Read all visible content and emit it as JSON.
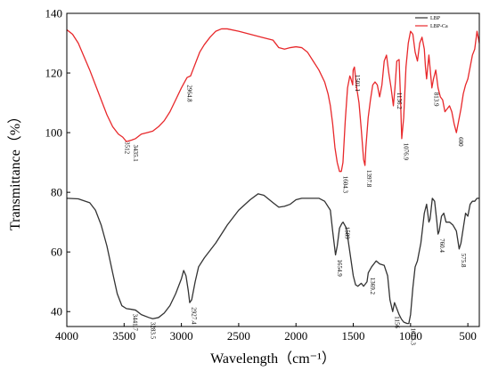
{
  "chart_data": {
    "type": "line",
    "xlabel": "Wavelength（cm⁻¹）",
    "ylabel": "Transmittance（%）",
    "xlim": [
      4000,
      400
    ],
    "ylim": [
      35,
      140
    ],
    "x_ticks": [
      4000,
      3500,
      3000,
      2500,
      2000,
      1500,
      1000,
      500
    ],
    "y_ticks": [
      40,
      60,
      80,
      100,
      120,
      140
    ],
    "legend_position": "top-right",
    "series": [
      {
        "name": "LBP",
        "color": "#333333",
        "points": [
          [
            4000,
            78
          ],
          [
            3900,
            77.8
          ],
          [
            3800,
            76.5
          ],
          [
            3750,
            74
          ],
          [
            3700,
            69
          ],
          [
            3650,
            62
          ],
          [
            3600,
            53
          ],
          [
            3560,
            46
          ],
          [
            3520,
            42
          ],
          [
            3480,
            41
          ],
          [
            3441.7,
            40.8
          ],
          [
            3400,
            40.5
          ],
          [
            3350,
            39
          ],
          [
            3283.5,
            38
          ],
          [
            3250,
            37.6
          ],
          [
            3200,
            38
          ],
          [
            3150,
            39.5
          ],
          [
            3100,
            42
          ],
          [
            3050,
            46
          ],
          [
            3000,
            51
          ],
          [
            2980,
            53.8
          ],
          [
            2960,
            52
          ],
          [
            2940,
            47
          ],
          [
            2927.4,
            43
          ],
          [
            2910,
            44
          ],
          [
            2880,
            50
          ],
          [
            2850,
            55
          ],
          [
            2800,
            58
          ],
          [
            2700,
            63
          ],
          [
            2600,
            69
          ],
          [
            2500,
            74
          ],
          [
            2400,
            77.5
          ],
          [
            2330,
            79.5
          ],
          [
            2280,
            79
          ],
          [
            2200,
            76.5
          ],
          [
            2150,
            75
          ],
          [
            2100,
            75.3
          ],
          [
            2050,
            76
          ],
          [
            2000,
            77.5
          ],
          [
            1950,
            78
          ],
          [
            1900,
            78
          ],
          [
            1850,
            78
          ],
          [
            1800,
            78
          ],
          [
            1750,
            77
          ],
          [
            1700,
            74
          ],
          [
            1680,
            67
          ],
          [
            1654.9,
            59
          ],
          [
            1640,
            62
          ],
          [
            1620,
            68
          ],
          [
            1600,
            69.5
          ],
          [
            1589,
            70
          ],
          [
            1560,
            68
          ],
          [
            1530,
            60
          ],
          [
            1500,
            52
          ],
          [
            1480,
            49
          ],
          [
            1460,
            48.5
          ],
          [
            1430,
            49.5
          ],
          [
            1410,
            48.5
          ],
          [
            1380,
            50
          ],
          [
            1369.2,
            53
          ],
          [
            1340,
            55
          ],
          [
            1300,
            57
          ],
          [
            1270,
            56
          ],
          [
            1230,
            55.5
          ],
          [
            1200,
            52
          ],
          [
            1180,
            44
          ],
          [
            1156,
            40
          ],
          [
            1140,
            43
          ],
          [
            1120,
            41
          ],
          [
            1100,
            39
          ],
          [
            1080,
            37.5
          ],
          [
            1060,
            36.5
          ],
          [
            1030,
            36
          ],
          [
            1015.3,
            36
          ],
          [
            1000,
            39
          ],
          [
            980,
            48
          ],
          [
            960,
            55
          ],
          [
            940,
            57
          ],
          [
            910,
            63
          ],
          [
            880,
            73
          ],
          [
            860,
            76
          ],
          [
            840,
            70
          ],
          [
            830,
            71
          ],
          [
            810,
            78
          ],
          [
            790,
            77
          ],
          [
            770,
            70
          ],
          [
            760.4,
            66
          ],
          [
            750,
            67
          ],
          [
            730,
            72
          ],
          [
            710,
            73
          ],
          [
            690,
            70
          ],
          [
            660,
            70
          ],
          [
            630,
            69
          ],
          [
            600,
            67
          ],
          [
            575.8,
            61
          ],
          [
            560,
            63
          ],
          [
            540,
            68
          ],
          [
            520,
            73
          ],
          [
            500,
            72
          ],
          [
            480,
            76
          ],
          [
            460,
            77
          ],
          [
            440,
            77
          ],
          [
            420,
            78
          ],
          [
            400,
            78
          ]
        ]
      },
      {
        "name": "LBP-Ca",
        "color": "#e8282b",
        "points": [
          [
            4000,
            134.5
          ],
          [
            3950,
            133
          ],
          [
            3900,
            130
          ],
          [
            3850,
            125.5
          ],
          [
            3800,
            121
          ],
          [
            3750,
            116
          ],
          [
            3700,
            111
          ],
          [
            3650,
            106
          ],
          [
            3600,
            102
          ],
          [
            3550,
            99.5
          ],
          [
            3512,
            98.5
          ],
          [
            3480,
            97
          ],
          [
            3435.1,
            97.5
          ],
          [
            3400,
            98
          ],
          [
            3350,
            99.5
          ],
          [
            3300,
            100
          ],
          [
            3250,
            100.5
          ],
          [
            3200,
            102
          ],
          [
            3150,
            104
          ],
          [
            3100,
            107
          ],
          [
            3050,
            111
          ],
          [
            3000,
            115
          ],
          [
            2964.8,
            117.5
          ],
          [
            2950,
            118.5
          ],
          [
            2920,
            119
          ],
          [
            2900,
            121
          ],
          [
            2870,
            124
          ],
          [
            2840,
            127
          ],
          [
            2800,
            129.5
          ],
          [
            2750,
            132
          ],
          [
            2700,
            134
          ],
          [
            2650,
            134.8
          ],
          [
            2600,
            134.8
          ],
          [
            2500,
            134
          ],
          [
            2400,
            133
          ],
          [
            2300,
            132
          ],
          [
            2200,
            131
          ],
          [
            2150,
            128.5
          ],
          [
            2100,
            128
          ],
          [
            2050,
            128.5
          ],
          [
            2000,
            128.8
          ],
          [
            1950,
            128.5
          ],
          [
            1900,
            127
          ],
          [
            1850,
            124
          ],
          [
            1800,
            121
          ],
          [
            1750,
            117
          ],
          [
            1720,
            113
          ],
          [
            1700,
            109
          ],
          [
            1680,
            103
          ],
          [
            1660,
            95
          ],
          [
            1640,
            90
          ],
          [
            1620,
            87
          ],
          [
            1604.3,
            87
          ],
          [
            1590,
            90
          ],
          [
            1570,
            104
          ],
          [
            1550,
            115
          ],
          [
            1530,
            119
          ],
          [
            1520,
            118
          ],
          [
            1505,
            116
          ],
          [
            1501.1,
            121
          ],
          [
            1490,
            122
          ],
          [
            1470,
            115
          ],
          [
            1450,
            110
          ],
          [
            1430,
            101
          ],
          [
            1410,
            91
          ],
          [
            1397.8,
            89
          ],
          [
            1390,
            95
          ],
          [
            1370,
            105
          ],
          [
            1350,
            111
          ],
          [
            1330,
            116
          ],
          [
            1310,
            117
          ],
          [
            1290,
            116
          ],
          [
            1270,
            112
          ],
          [
            1250,
            116
          ],
          [
            1230,
            124
          ],
          [
            1210,
            126
          ],
          [
            1190,
            120
          ],
          [
            1170,
            115
          ],
          [
            1150,
            109
          ],
          [
            1136.2,
            115
          ],
          [
            1120,
            124
          ],
          [
            1100,
            124.5
          ],
          [
            1090,
            114
          ],
          [
            1076.9,
            98
          ],
          [
            1060,
            105
          ],
          [
            1040,
            122
          ],
          [
            1020,
            130
          ],
          [
            1000,
            134
          ],
          [
            980,
            133
          ],
          [
            960,
            127
          ],
          [
            940,
            124
          ],
          [
            920,
            130
          ],
          [
            900,
            132
          ],
          [
            880,
            128
          ],
          [
            870,
            122
          ],
          [
            860,
            118
          ],
          [
            850,
            122
          ],
          [
            840,
            126
          ],
          [
            813.9,
            115
          ],
          [
            800,
            118
          ],
          [
            780,
            121
          ],
          [
            760,
            115
          ],
          [
            740,
            112
          ],
          [
            720,
            111
          ],
          [
            700,
            107
          ],
          [
            680,
            108
          ],
          [
            660,
            109
          ],
          [
            640,
            107
          ],
          [
            620,
            103
          ],
          [
            600,
            100
          ],
          [
            580,
            104
          ],
          [
            560,
            108
          ],
          [
            540,
            113
          ],
          [
            520,
            116
          ],
          [
            500,
            118
          ],
          [
            480,
            122
          ],
          [
            460,
            126
          ],
          [
            440,
            128
          ],
          [
            420,
            134
          ],
          [
            400,
            130
          ]
        ]
      }
    ],
    "annotations": [
      {
        "series": "LBP-Ca",
        "label": "3512",
        "x": 3512,
        "y": 98.5
      },
      {
        "series": "LBP-Ca",
        "label": "3435.1",
        "x": 3435.1,
        "y": 97.5
      },
      {
        "series": "LBP-Ca",
        "label": "2964.8",
        "x": 2964.8,
        "y": 117.5
      },
      {
        "series": "LBP-Ca",
        "label": "1604.3",
        "x": 1604.3,
        "y": 87
      },
      {
        "series": "LBP-Ca",
        "label": "1501.1",
        "x": 1501.1,
        "y": 121
      },
      {
        "series": "LBP-Ca",
        "label": "1397.8",
        "x": 1397.8,
        "y": 89
      },
      {
        "series": "LBP-Ca",
        "label": "1136.2",
        "x": 1136.2,
        "y": 115
      },
      {
        "series": "LBP-Ca",
        "label": "1076.9",
        "x": 1076.9,
        "y": 98
      },
      {
        "series": "LBP-Ca",
        "label": "813.9",
        "x": 813.9,
        "y": 115
      },
      {
        "series": "LBP-Ca",
        "label": "600",
        "x": 600,
        "y": 100
      },
      {
        "series": "LBP",
        "label": "3441.7",
        "x": 3441.7,
        "y": 40.8
      },
      {
        "series": "LBP",
        "label": "3283.5",
        "x": 3283.5,
        "y": 38
      },
      {
        "series": "LBP",
        "label": "2927.4",
        "x": 2927.4,
        "y": 43
      },
      {
        "series": "LBP",
        "label": "1654.9",
        "x": 1654.9,
        "y": 59
      },
      {
        "series": "LBP",
        "label": "1589",
        "x": 1589,
        "y": 70
      },
      {
        "series": "LBP",
        "label": "1369.2",
        "x": 1369.2,
        "y": 53
      },
      {
        "series": "LBP",
        "label": "1156",
        "x": 1156,
        "y": 40
      },
      {
        "series": "LBP",
        "label": "1015.3",
        "x": 1015.3,
        "y": 36
      },
      {
        "series": "LBP",
        "label": "760.4",
        "x": 760.4,
        "y": 66
      },
      {
        "series": "LBP",
        "label": "575.8",
        "x": 575.8,
        "y": 61
      }
    ]
  }
}
